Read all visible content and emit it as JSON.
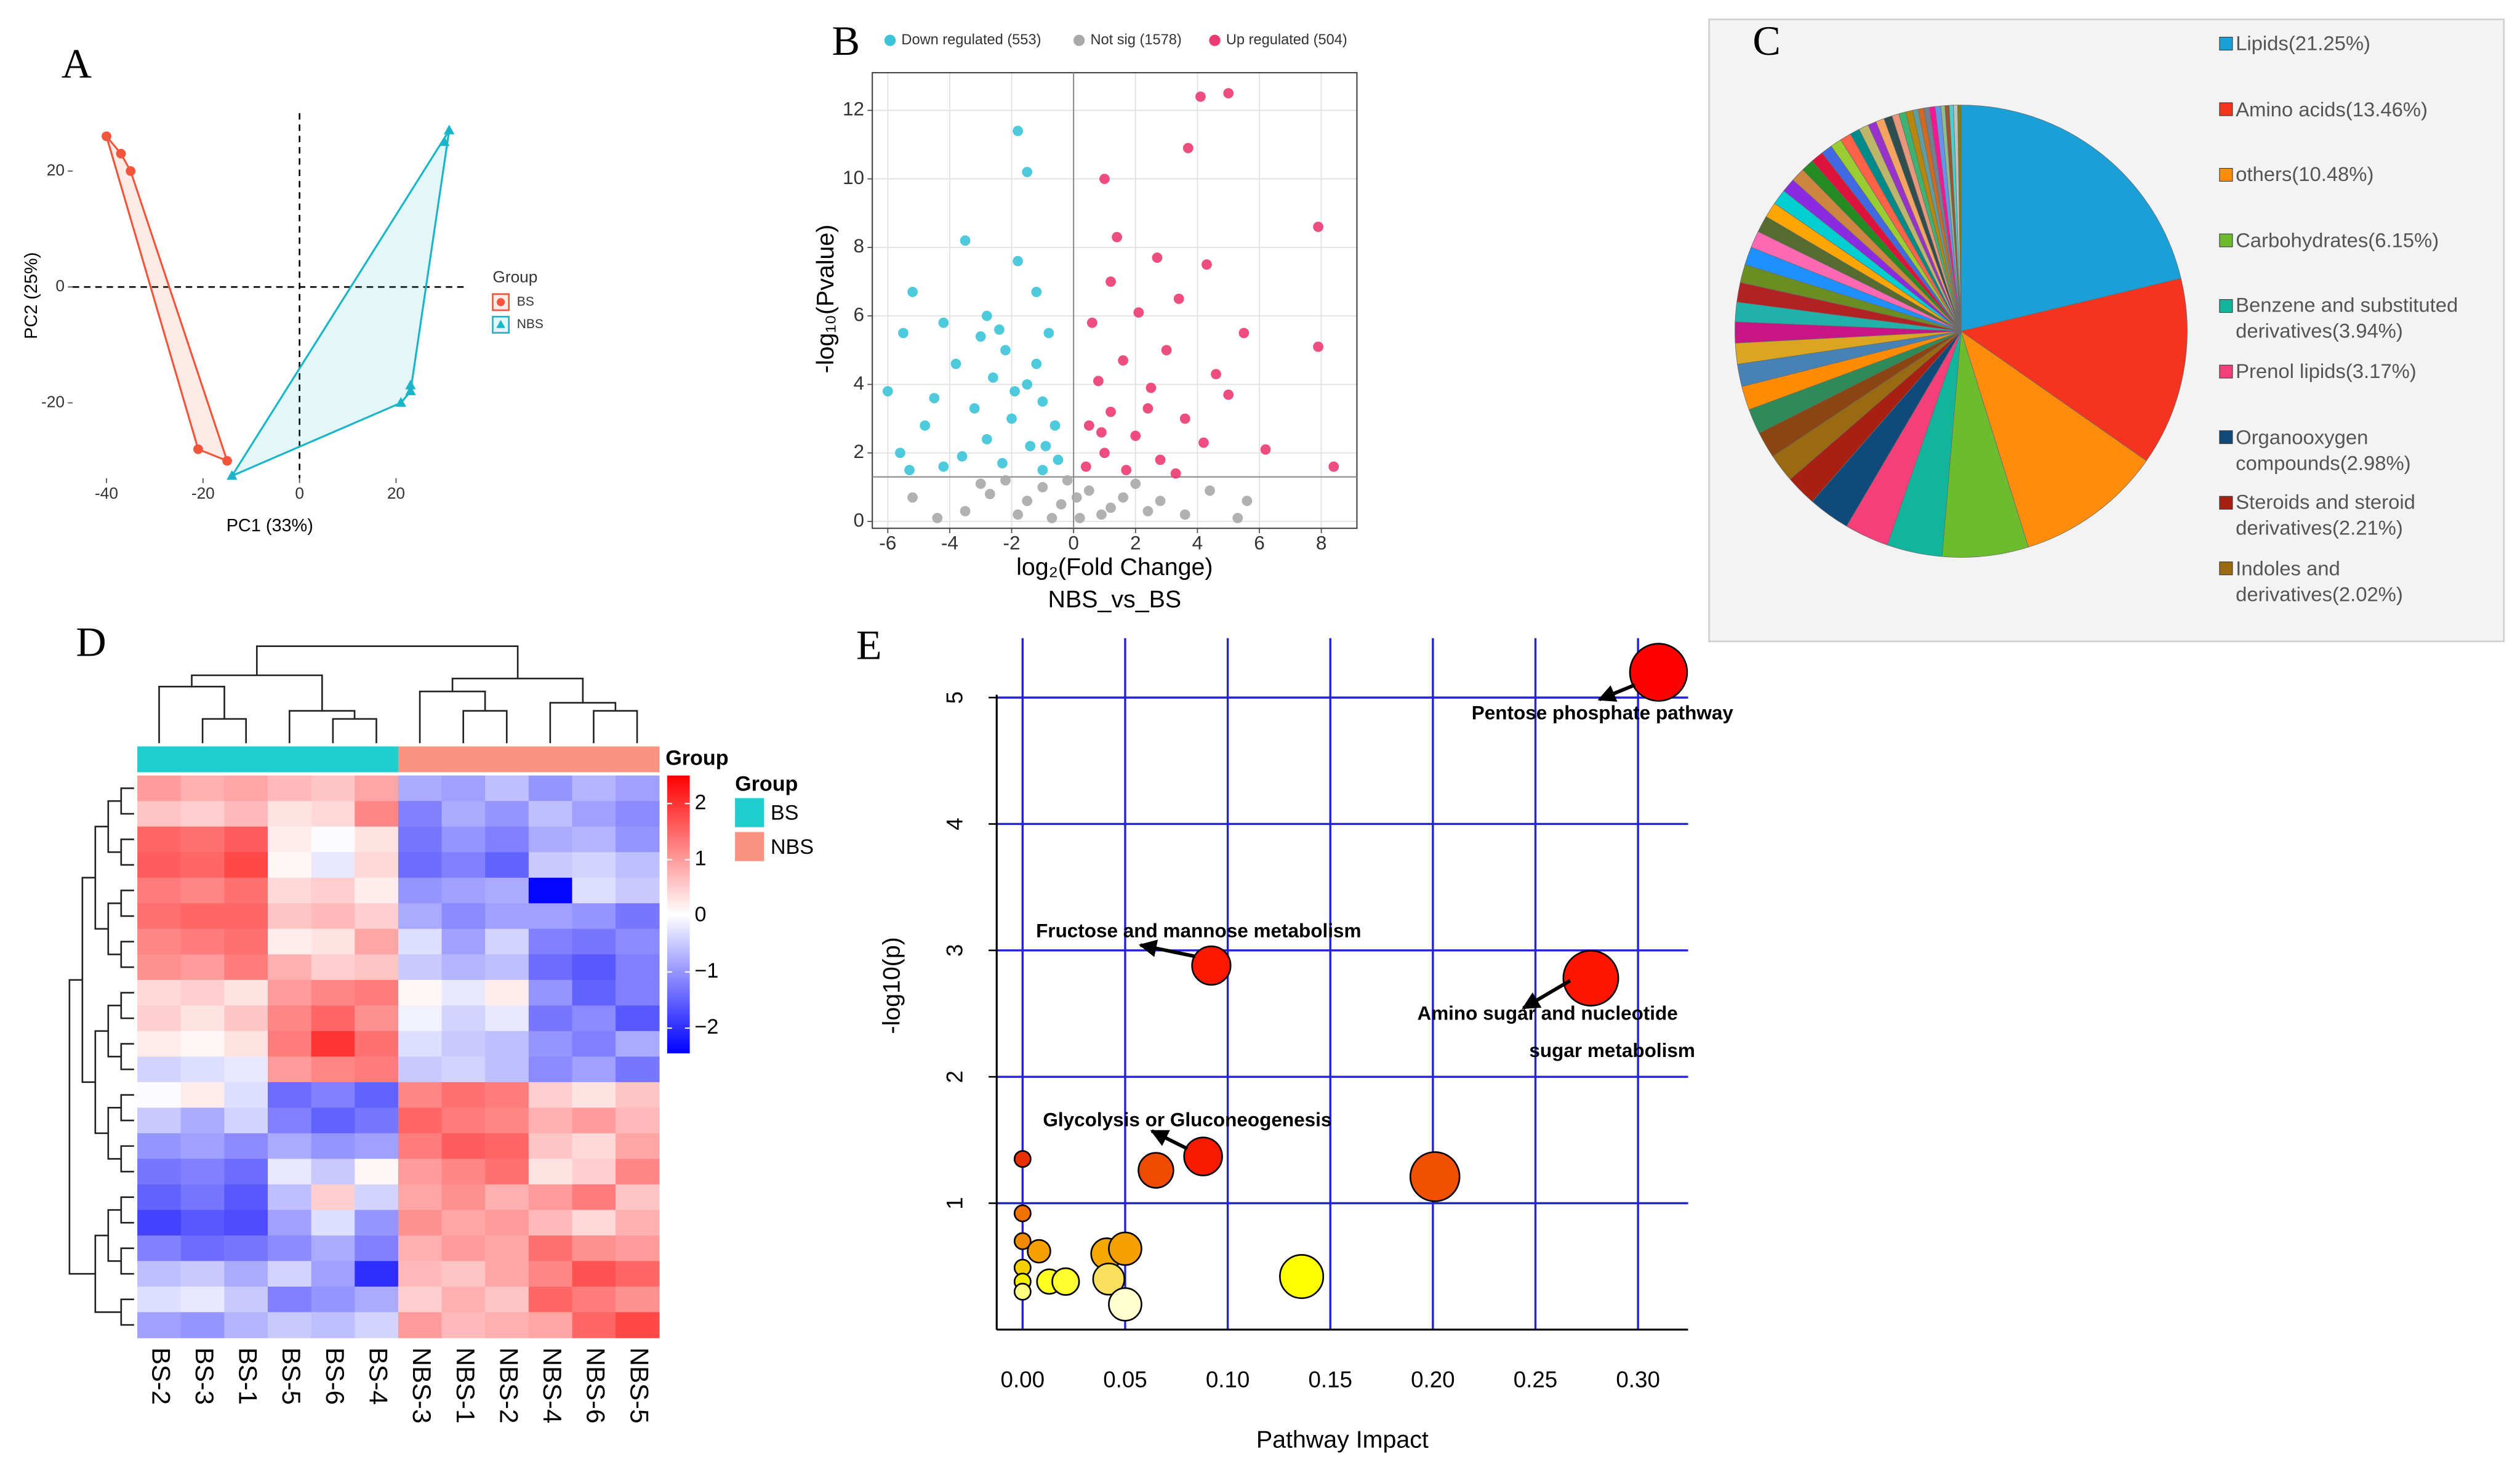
{
  "chart_data": [
    {
      "type": "scatter",
      "panel": "A",
      "x_label": "PC1 (33%)",
      "y_label": "PC2 (25%)",
      "legend_title": "Group",
      "legend": "right",
      "xlim": [
        -47,
        35
      ],
      "ylim": [
        -33,
        30
      ],
      "xticks": [
        -40,
        -20,
        0,
        20
      ],
      "yticks": [
        -20,
        0,
        20
      ],
      "grid": false,
      "frame": false,
      "hull": true,
      "reference_lines": {
        "x": 0,
        "y": 0
      },
      "series": [
        {
          "name": "BS",
          "color": "#f4553a",
          "marker": "circle",
          "x": [
            -40,
            -37,
            -35,
            -21,
            -15
          ],
          "values": [
            26,
            23,
            20,
            -28,
            -30
          ]
        },
        {
          "name": "NBS",
          "color": "#1ab5c8",
          "marker": "triangle",
          "x": [
            31,
            30,
            23,
            23,
            21,
            -14
          ],
          "values": [
            27,
            25,
            -17,
            -18,
            -20,
            -32.6
          ]
        }
      ]
    },
    {
      "type": "scatter",
      "panel": "B",
      "x_label": "log₂(Fold Change)",
      "subtitle": "NBS_vs_BS",
      "y_label": "-log₁₀(Pvalue)",
      "legend": "top",
      "xlim": [
        -6.5,
        9.15
      ],
      "ylim": [
        -0.2,
        13.1
      ],
      "xticks": [
        -6,
        -4,
        -2,
        0,
        2,
        4,
        6,
        8
      ],
      "yticks": [
        0,
        2,
        4,
        6,
        8,
        10,
        12
      ],
      "grid": true,
      "frame": true,
      "hull": false,
      "reference_lines": {
        "x": 0,
        "y": 1.3
      },
      "series": [
        {
          "name": "Down regulated (553)",
          "color": "#3cc3d8",
          "marker": "circle",
          "x": [
            -1.8,
            -1.5,
            -3.5,
            -1.8,
            -5.2,
            -2.8,
            -1.2,
            -4.2,
            -3.0,
            -5.5,
            -2.2,
            -0.8,
            -3.8,
            -2.6,
            -1.5,
            -4.5,
            -6.0,
            -3.2,
            -1.0,
            -2.0,
            -0.6,
            -4.8,
            -2.8,
            -1.4,
            -5.6,
            -3.6,
            -0.5,
            -2.3,
            -1.0,
            -4.2,
            -5.3,
            -1.9,
            -2.4,
            -1.2,
            -0.9
          ],
          "values": [
            11.4,
            10.2,
            8.2,
            7.6,
            6.7,
            6.0,
            6.7,
            5.8,
            5.4,
            5.5,
            5.0,
            5.5,
            4.6,
            4.2,
            4.0,
            3.6,
            3.8,
            3.3,
            3.5,
            3.0,
            2.8,
            2.8,
            2.4,
            2.2,
            2.0,
            1.9,
            1.8,
            1.7,
            1.5,
            1.6,
            1.5,
            3.8,
            5.6,
            4.6,
            2.2
          ]
        },
        {
          "name": "Not sig (1578)",
          "color": "#a9a9a9",
          "marker": "circle",
          "x": [
            -3.5,
            -2.7,
            -1.8,
            -1.0,
            -0.4,
            0.2,
            0.5,
            1.2,
            2.0,
            2.8,
            3.6,
            4.4,
            5.3,
            5.6,
            -5.2,
            -4.4,
            -0.2,
            0.9,
            1.6,
            -2.2,
            -1.5,
            0.1,
            -0.7,
            2.4,
            -3.0
          ],
          "values": [
            0.3,
            0.8,
            0.2,
            1.0,
            0.5,
            0.1,
            0.9,
            0.4,
            1.1,
            0.6,
            0.2,
            0.9,
            0.1,
            0.6,
            0.7,
            0.1,
            1.2,
            0.2,
            0.7,
            1.2,
            0.6,
            0.7,
            0.1,
            0.3,
            1.1
          ]
        },
        {
          "name": "Up regulated (504)",
          "color": "#ec3a72",
          "marker": "circle",
          "x": [
            4.1,
            5.0,
            3.7,
            1.0,
            7.9,
            1.4,
            2.7,
            4.3,
            1.2,
            3.4,
            5.5,
            7.9,
            2.1,
            0.6,
            3.0,
            1.6,
            4.6,
            0.8,
            2.5,
            5.0,
            1.2,
            3.6,
            0.5,
            2.0,
            4.2,
            1.0,
            2.8,
            0.4,
            6.2,
            8.4,
            1.7,
            3.3,
            0.9,
            2.4
          ],
          "values": [
            12.4,
            12.5,
            10.9,
            10.0,
            8.6,
            8.3,
            7.7,
            7.5,
            7.0,
            6.5,
            5.5,
            5.1,
            6.1,
            5.8,
            5.0,
            4.7,
            4.3,
            4.1,
            3.9,
            3.7,
            3.2,
            3.0,
            2.8,
            2.5,
            2.3,
            2.0,
            1.8,
            1.6,
            2.1,
            1.6,
            1.5,
            1.4,
            2.6,
            3.3
          ]
        }
      ]
    },
    {
      "type": "pie",
      "panel": "C",
      "categories": [
        "Lipids(21.25%)",
        "Amino acids(13.46%)",
        "others(10.48%)",
        "Carbohydrates(6.15%)",
        "Benzene and substituted derivatives(3.94%)",
        "Prenol lipids(3.17%)",
        "Organooxygen compounds(2.98%)",
        "Steroids and steroid derivatives(2.21%)",
        "Indoles and derivatives(2.02%)",
        null,
        null,
        null,
        null,
        null,
        null,
        null,
        null,
        null,
        null,
        null,
        null,
        null,
        null,
        null,
        null,
        null,
        null,
        null,
        null,
        null,
        null,
        null,
        null,
        null,
        null,
        null,
        null,
        null,
        null,
        null,
        null,
        null,
        null,
        null,
        null,
        null,
        null,
        null
      ],
      "values": [
        21.25,
        13.46,
        10.48,
        6.15,
        3.94,
        3.17,
        2.98,
        2.21,
        2.02,
        1.9,
        1.8,
        1.7,
        1.6,
        1.5,
        1.5,
        1.4,
        1.4,
        1.3,
        1.3,
        1.2,
        1.2,
        1.1,
        1.1,
        1.0,
        1.0,
        0.9,
        0.9,
        0.8,
        0.8,
        0.8,
        0.7,
        0.7,
        0.6,
        0.6,
        0.6,
        0.5,
        0.5,
        0.5,
        0.4,
        0.4,
        0.4,
        0.4,
        0.4,
        0.3,
        0.3,
        0.3,
        0.3,
        0.24
      ],
      "colors": [
        "#1a9fd6",
        "#f5341f",
        "#ff8c0a",
        "#6cbd2e",
        "#12b59c",
        "#f53f7a",
        "#0f4a7a",
        "#a82012",
        "#9a6a10",
        "#8b4513",
        "#2e8b57",
        "#ff8c00",
        "#4682b4",
        "#daa520",
        "#c71585",
        "#20b2aa",
        "#b22222",
        "#6b8e23",
        "#1e90ff",
        "#ff69b4",
        "#556b2f",
        "#ffa500",
        "#00ced1",
        "#8a2be2",
        "#cd853f",
        "#228b22",
        "#dc143c",
        "#4169e1",
        "#9acd32",
        "#ff6347",
        "#008b8b",
        "#bdb76b",
        "#9932cc",
        "#f4a460",
        "#2f4f4f",
        "#e9967a",
        "#3cb371",
        "#b8860b",
        "#5f9ea0",
        "#d2691e",
        "#708090",
        "#ff1493",
        "#6495ed",
        "#8fbc8f",
        "#a0522d",
        "#48d1cc",
        "#c0c0c0",
        "#808000"
      ]
    },
    {
      "type": "heatmap",
      "panel": "D",
      "columns": [
        "BS-2",
        "BS-3",
        "BS-1",
        "BS-5",
        "BS-6",
        "BS-4",
        "NBS-3",
        "NBS-1",
        "NBS-2",
        "NBS-4",
        "NBS-6",
        "NBS-5"
      ],
      "column_colors": [
        "#1fcfd0",
        "#1fcfd0",
        "#1fcfd0",
        "#1fcfd0",
        "#1fcfd0",
        "#1fcfd0",
        "#f99483",
        "#f99483",
        "#f99483",
        "#f99483",
        "#f99483",
        "#f99483"
      ],
      "annotation_label": "Group",
      "legend_title": "Group",
      "legend": [
        {
          "name": "BS",
          "color": "#1fcfd0"
        },
        {
          "name": "NBS",
          "color": "#f99483"
        }
      ],
      "clim": [
        -2.45,
        2.5
      ],
      "colorscale": [
        "#0000ff",
        "#ffffff",
        "#ff0000"
      ],
      "cticks": [
        2,
        1,
        0,
        {
          "value": -1,
          "label": "−1"
        },
        {
          "value": -2,
          "label": "−2"
        }
      ],
      "values": [
        [
          1.0,
          0.8,
          0.9,
          0.7,
          0.6,
          0.9,
          -0.8,
          -0.9,
          -0.6,
          -1.0,
          -0.7,
          -0.9
        ],
        [
          0.6,
          0.5,
          0.7,
          0.3,
          0.4,
          1.2,
          -1.2,
          -0.8,
          -1.0,
          -0.6,
          -0.9,
          -1.1
        ],
        [
          1.5,
          1.4,
          1.6,
          0.2,
          0.0,
          0.3,
          -1.3,
          -1.0,
          -1.2,
          -0.8,
          -0.7,
          -1.0
        ],
        [
          1.6,
          1.5,
          1.8,
          0.1,
          -0.2,
          0.4,
          -1.4,
          -1.2,
          -1.5,
          -0.5,
          -0.4,
          -0.6
        ],
        [
          1.3,
          1.2,
          1.4,
          0.4,
          0.5,
          0.2,
          -1.0,
          -0.9,
          -0.8,
          -2.4,
          -0.3,
          -0.5
        ],
        [
          1.4,
          1.5,
          1.5,
          0.6,
          0.7,
          0.5,
          -0.8,
          -1.1,
          -0.9,
          -0.9,
          -1.0,
          -1.3
        ],
        [
          1.2,
          1.3,
          1.4,
          0.2,
          0.3,
          0.9,
          -0.3,
          -0.9,
          -0.4,
          -1.2,
          -1.3,
          -1.1
        ],
        [
          1.1,
          1.0,
          1.3,
          0.8,
          0.5,
          0.6,
          -0.5,
          -0.7,
          -0.6,
          -1.4,
          -1.6,
          -1.2
        ],
        [
          0.4,
          0.5,
          0.3,
          1.0,
          1.2,
          1.3,
          0.1,
          -0.2,
          0.2,
          -1.0,
          -1.5,
          -1.2
        ],
        [
          0.5,
          0.3,
          0.6,
          1.2,
          1.5,
          1.1,
          -0.1,
          -0.4,
          -0.2,
          -1.3,
          -1.1,
          -1.6
        ],
        [
          0.2,
          0.1,
          0.3,
          1.3,
          2.0,
          1.4,
          -0.3,
          -0.5,
          -0.6,
          -1.0,
          -1.2,
          -0.8
        ],
        [
          -0.4,
          -0.3,
          -0.2,
          1.0,
          1.2,
          1.3,
          -0.5,
          -0.4,
          -0.6,
          -1.1,
          -0.9,
          -1.3
        ],
        [
          0.0,
          0.2,
          -0.3,
          -1.4,
          -1.2,
          -1.5,
          1.2,
          1.4,
          1.3,
          0.5,
          0.3,
          0.6
        ],
        [
          -0.5,
          -0.8,
          -0.4,
          -1.2,
          -1.5,
          -1.3,
          1.5,
          1.3,
          1.2,
          0.8,
          1.0,
          0.7
        ],
        [
          -1.0,
          -0.9,
          -1.1,
          -0.8,
          -1.0,
          -0.9,
          1.3,
          1.6,
          1.5,
          0.6,
          0.4,
          0.9
        ],
        [
          -1.3,
          -1.2,
          -1.4,
          -0.2,
          -0.5,
          0.1,
          1.0,
          1.2,
          1.4,
          0.3,
          0.5,
          1.2
        ],
        [
          -1.5,
          -1.3,
          -1.6,
          -0.6,
          0.5,
          -0.4,
          0.9,
          1.1,
          0.8,
          1.0,
          1.3,
          0.6
        ],
        [
          -1.8,
          -1.6,
          -1.7,
          -0.9,
          -0.3,
          -1.0,
          1.1,
          0.9,
          1.0,
          0.7,
          0.4,
          0.8
        ],
        [
          -1.2,
          -1.4,
          -1.3,
          -1.1,
          -0.8,
          -1.2,
          0.8,
          1.0,
          0.9,
          1.4,
          1.1,
          1.0
        ],
        [
          -0.6,
          -0.5,
          -0.8,
          -0.4,
          -0.9,
          -2.0,
          0.7,
          0.6,
          0.9,
          1.2,
          1.7,
          1.5
        ],
        [
          -0.3,
          -0.2,
          -0.5,
          -1.2,
          -1.0,
          -0.8,
          0.5,
          0.8,
          0.6,
          1.5,
          1.3,
          1.1
        ],
        [
          -0.9,
          -1.0,
          -0.7,
          -0.5,
          -0.6,
          -0.4,
          1.0,
          0.7,
          0.8,
          0.9,
          1.5,
          1.8
        ]
      ]
    },
    {
      "type": "bubble",
      "panel": "E",
      "x_label": "Pathway Impact",
      "y_label": "-log10(p)",
      "xlim": [
        -0.0142,
        0.3244
      ],
      "ylim": [
        0,
        5.47
      ],
      "xticks": [
        {
          "value": 0,
          "label": "0.00"
        },
        0.05,
        {
          "value": 0.1,
          "label": "0.10"
        },
        0.15,
        {
          "value": 0.2,
          "label": "0.20"
        },
        0.25,
        {
          "value": 0.3,
          "label": "0.30"
        }
      ],
      "yticks": [
        1,
        2,
        3,
        4,
        5
      ],
      "grid": true,
      "grid_color": "#2323d8",
      "x": [
        0.31,
        0.277,
        0.092,
        0.088,
        0.065,
        0.201,
        0.0,
        0.0,
        0.0,
        0.008,
        0.0,
        0.0,
        0.0,
        0.013,
        0.021,
        0.041,
        0.05,
        0.042,
        0.05,
        0.136
      ],
      "values": [
        5.2,
        2.78,
        2.88,
        1.37,
        1.26,
        1.21,
        1.35,
        0.92,
        0.7,
        0.62,
        0.49,
        0.38,
        0.3,
        0.38,
        0.38,
        0.6,
        0.64,
        0.4,
        0.2,
        0.42
      ],
      "colors": [
        "#ff0000",
        "#ff1400",
        "#ff1800",
        "#f51a00",
        "#f04a00",
        "#f05000",
        "#e83000",
        "#f07000",
        "#f08a00",
        "#f5a000",
        "#f5d000",
        "#f5f000",
        "#ffff80",
        "#ffff20",
        "#ffff30",
        "#f5a800",
        "#f5a000",
        "#fbe060",
        "#ffffd0",
        "#ffff00"
      ],
      "annotations": [
        "Pentose phosphate pathway",
        "Fructose and mannose metabolism",
        "Amino sugar and nucleotide",
        "sugar metabolism",
        "Glycolysis or Gluconeogenesis"
      ]
    }
  ]
}
